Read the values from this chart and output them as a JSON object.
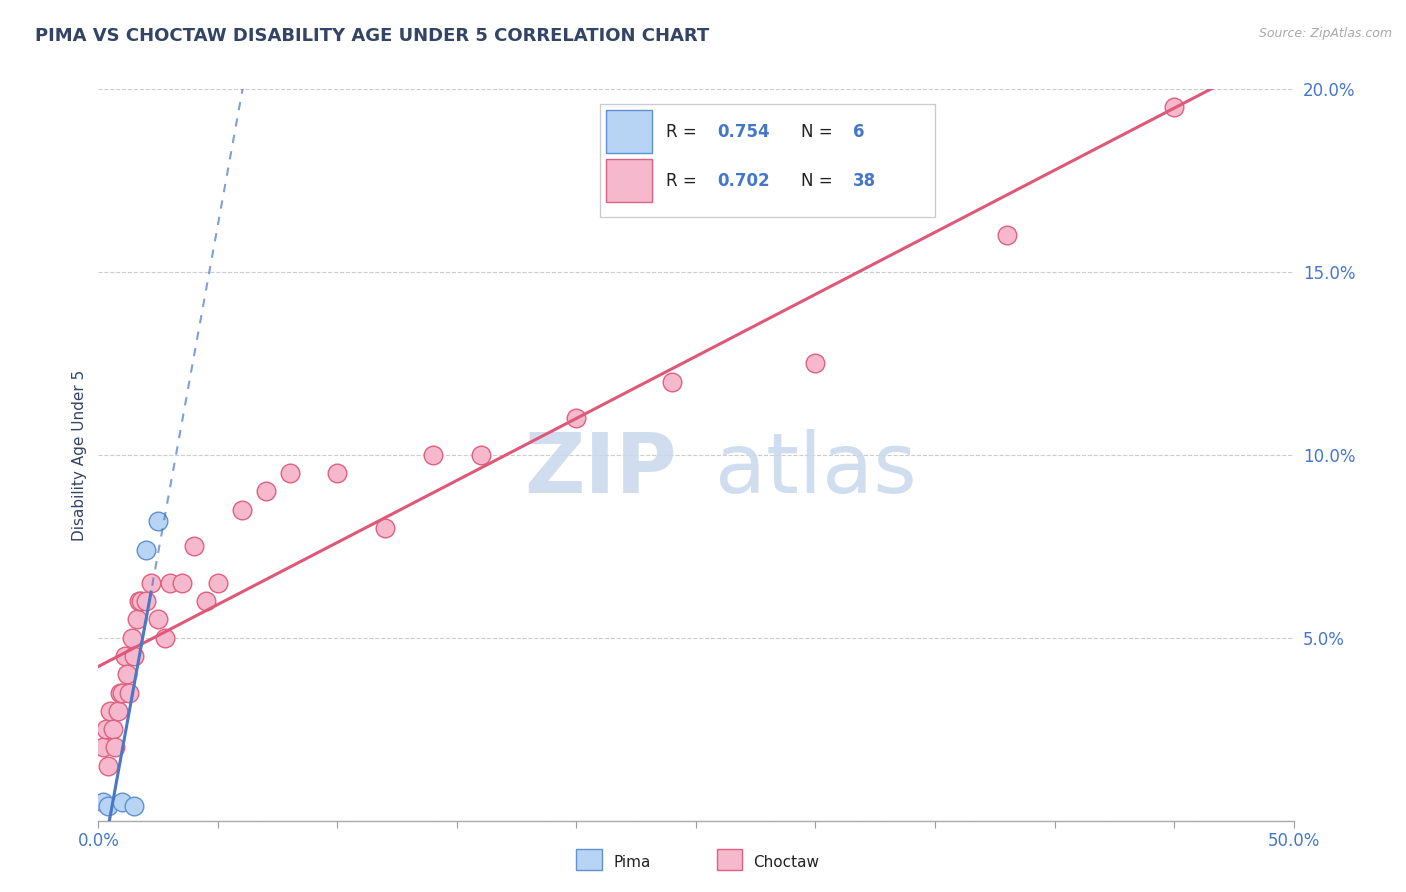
{
  "title": "PIMA VS CHOCTAW DISABILITY AGE UNDER 5 CORRELATION CHART",
  "source": "Source: ZipAtlas.com",
  "ylabel": "Disability Age Under 5",
  "xlabel": "",
  "xlim": [
    0.0,
    0.5
  ],
  "ylim": [
    0.0,
    0.2
  ],
  "xtick_positions": [
    0.0,
    0.05,
    0.1,
    0.15,
    0.2,
    0.25,
    0.3,
    0.35,
    0.4,
    0.45,
    0.5
  ],
  "xtick_labels": [
    "0.0%",
    "",
    "",
    "",
    "",
    "",
    "",
    "",
    "",
    "",
    "50.0%"
  ],
  "ytick_positions": [
    0.0,
    0.05,
    0.1,
    0.15,
    0.2
  ],
  "ytick_labels": [
    "",
    "5.0%",
    "10.0%",
    "15.0%",
    "20.0%"
  ],
  "pima_R": 0.754,
  "pima_N": 6,
  "choctaw_R": 0.702,
  "choctaw_N": 38,
  "pima_fill_color": "#b8d4f5",
  "choctaw_fill_color": "#f5b8cc",
  "pima_edge_color": "#6090d0",
  "choctaw_edge_color": "#e06080",
  "pima_line_color": "#4878c8",
  "choctaw_line_color": "#e05878",
  "legend_color": "#4477cc",
  "pima_x": [
    0.002,
    0.004,
    0.01,
    0.015,
    0.02,
    0.025
  ],
  "pima_y": [
    0.005,
    0.004,
    0.005,
    0.004,
    0.074,
    0.082
  ],
  "choctaw_x": [
    0.002,
    0.003,
    0.004,
    0.005,
    0.006,
    0.007,
    0.008,
    0.009,
    0.01,
    0.011,
    0.012,
    0.013,
    0.014,
    0.015,
    0.016,
    0.017,
    0.018,
    0.02,
    0.022,
    0.025,
    0.028,
    0.03,
    0.035,
    0.04,
    0.045,
    0.05,
    0.06,
    0.07,
    0.08,
    0.1,
    0.12,
    0.14,
    0.16,
    0.2,
    0.24,
    0.3,
    0.38,
    0.45
  ],
  "choctaw_y": [
    0.02,
    0.025,
    0.015,
    0.03,
    0.025,
    0.02,
    0.03,
    0.035,
    0.035,
    0.045,
    0.04,
    0.035,
    0.05,
    0.045,
    0.055,
    0.06,
    0.06,
    0.06,
    0.065,
    0.055,
    0.05,
    0.065,
    0.065,
    0.075,
    0.06,
    0.065,
    0.085,
    0.09,
    0.095,
    0.095,
    0.08,
    0.1,
    0.1,
    0.11,
    0.12,
    0.125,
    0.16,
    0.195
  ]
}
